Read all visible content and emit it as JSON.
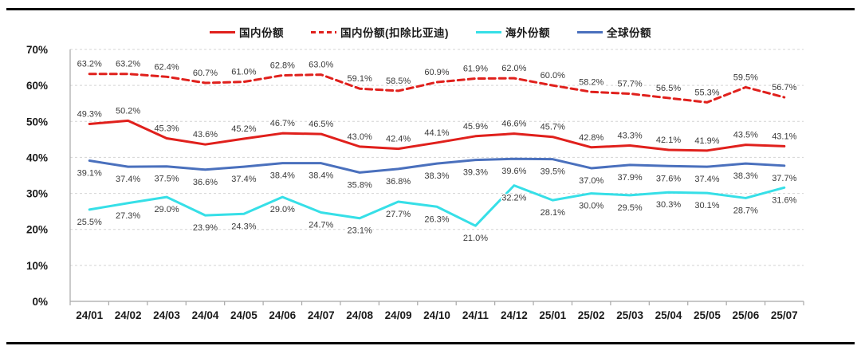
{
  "page": {
    "background": "#ffffff",
    "rule_color": "#0a0a0a"
  },
  "chart_data": {
    "type": "line",
    "categories": [
      "24/01",
      "24/02",
      "24/03",
      "24/04",
      "24/05",
      "24/06",
      "24/07",
      "24/08",
      "24/09",
      "24/10",
      "24/11",
      "24/12",
      "25/01",
      "25/02",
      "25/03",
      "25/04",
      "25/05",
      "25/06",
      "25/07"
    ],
    "series": [
      {
        "name": "国内份额",
        "color": "#e0201c",
        "dash": "solid",
        "label_pos": "above",
        "values": [
          49.3,
          50.2,
          45.3,
          43.6,
          45.2,
          46.7,
          46.5,
          43.0,
          42.4,
          44.1,
          45.9,
          46.6,
          45.7,
          42.8,
          43.3,
          42.1,
          41.9,
          43.5,
          43.1
        ]
      },
      {
        "name": "国内份额(扣除比亚迪)",
        "color": "#e0201c",
        "dash": "dashed",
        "label_pos": "above",
        "values": [
          63.2,
          63.2,
          62.4,
          60.7,
          61.0,
          62.8,
          63.0,
          59.1,
          58.5,
          60.9,
          61.9,
          62.0,
          60.0,
          58.2,
          57.7,
          56.5,
          55.3,
          59.5,
          56.7
        ]
      },
      {
        "name": "海外份额",
        "color": "#36dfe7",
        "dash": "solid",
        "label_pos": "below",
        "values": [
          25.5,
          27.3,
          29.0,
          23.9,
          24.3,
          29.0,
          24.7,
          23.1,
          27.7,
          26.3,
          21.0,
          32.2,
          28.1,
          30.0,
          29.5,
          30.3,
          30.1,
          28.7,
          31.6
        ]
      },
      {
        "name": "全球份额",
        "color": "#4a70bd",
        "dash": "solid",
        "label_pos": "below",
        "values": [
          39.1,
          37.4,
          37.5,
          36.6,
          37.4,
          38.4,
          38.4,
          35.8,
          36.8,
          38.3,
          39.3,
          39.6,
          39.5,
          37.0,
          37.9,
          37.6,
          37.4,
          38.3,
          37.7
        ]
      }
    ],
    "ylim": [
      0,
      70
    ],
    "ytick_step": 10,
    "ytick_labels": [
      "0%",
      "10%",
      "20%",
      "30%",
      "40%",
      "50%",
      "60%",
      "70%"
    ],
    "grid": "dashed horizontal",
    "grid_color": "#d4d4d4",
    "axis_color": "#a8a8a8",
    "data_label_color": "#3a3a3a",
    "axis_label_color": "#1a1a1a",
    "legend_position": "top",
    "title": "",
    "xlabel": "",
    "ylabel": ""
  }
}
